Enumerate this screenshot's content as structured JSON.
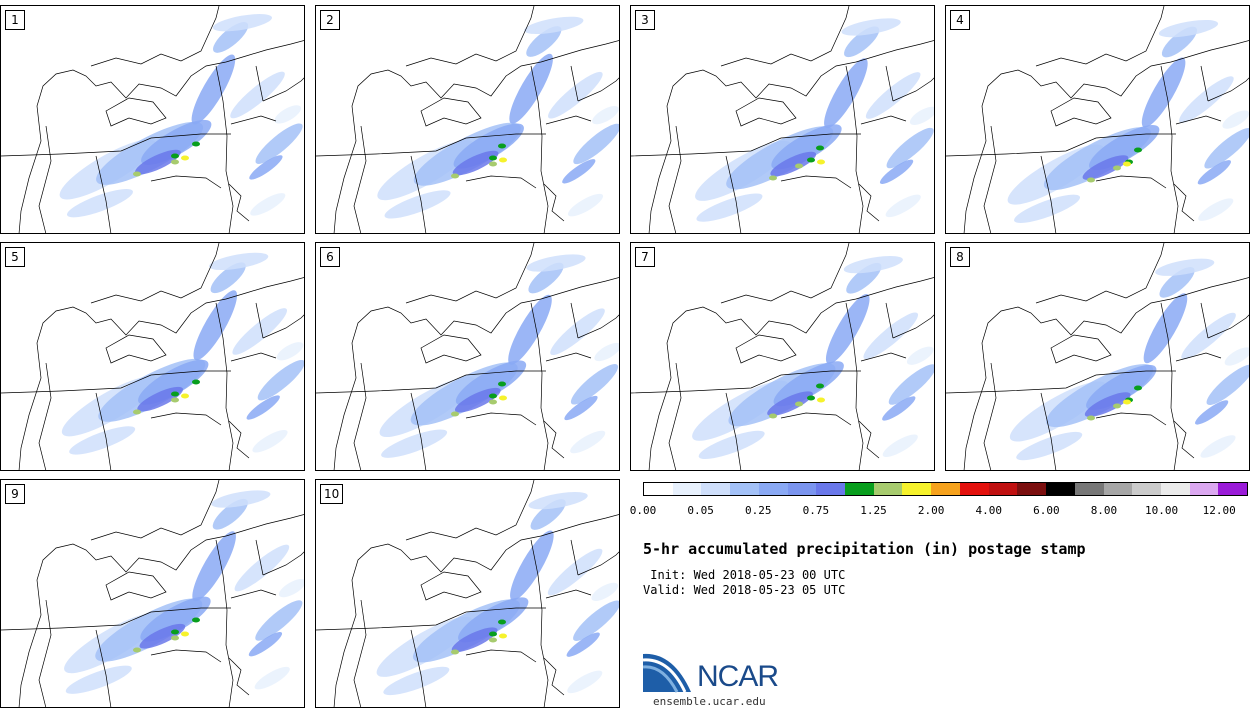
{
  "panels": [
    {
      "label": "1"
    },
    {
      "label": "2"
    },
    {
      "label": "3"
    },
    {
      "label": "4"
    },
    {
      "label": "5"
    },
    {
      "label": "6"
    },
    {
      "label": "7"
    },
    {
      "label": "8"
    },
    {
      "label": "9"
    },
    {
      "label": "10"
    }
  ],
  "colorbar": {
    "colors": [
      "#ffffff",
      "#e8f1fd",
      "#cfdffb",
      "#a3c1f7",
      "#8aa9f4",
      "#7b95ef",
      "#6a78ea",
      "#089e1d",
      "#a7cb6e",
      "#f6f22c",
      "#f6a21d",
      "#e3110d",
      "#c01010",
      "#7b0f0f",
      "#000000",
      "#777777",
      "#a6a6a6",
      "#cbcbcb",
      "#ebebeb",
      "#dba8f0",
      "#9a1bd8"
    ],
    "tick_labels": [
      "0.00",
      "0.05",
      "0.25",
      "0.75",
      "1.25",
      "2.00",
      "4.00",
      "6.00",
      "8.00",
      "10.00",
      "12.00"
    ]
  },
  "title": "5-hr accumulated precipitation (in) postage stamp",
  "init": " Init: Wed 2018-05-23 00 UTC",
  "valid": "Valid: Wed 2018-05-23 05 UTC",
  "logo": {
    "text": "NCAR",
    "url": "ensemble.ucar.edu"
  }
}
